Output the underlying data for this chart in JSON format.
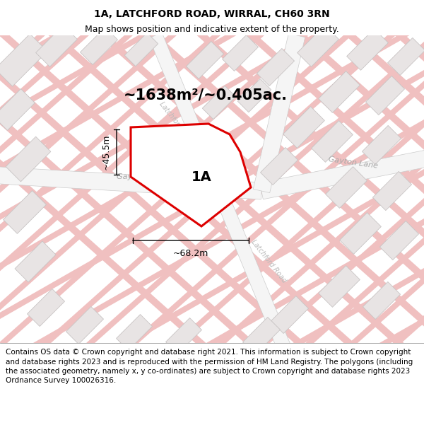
{
  "title": "1A, LATCHFORD ROAD, WIRRAL, CH60 3RN",
  "subtitle": "Map shows position and indicative extent of the property.",
  "area_label": "~1638m²/~0.405ac.",
  "plot_label": "1A",
  "dim_width": "~68.2m",
  "dim_height": "~45.5m",
  "footer": "Contains OS data © Crown copyright and database right 2021. This information is subject to Crown copyright and database rights 2023 and is reproduced with the permission of HM Land Registry. The polygons (including the associated geometry, namely x, y co-ordinates) are subject to Crown copyright and database rights 2023 Ordnance Survey 100026316.",
  "map_bg": "#ffffff",
  "road_color": "#f2b8b8",
  "road_border": "#e89898",
  "road_main_fill": "#f5f5f5",
  "road_main_border": "#cccccc",
  "building_fill": "#e8e4e4",
  "building_edge": "#c8c4c4",
  "plot_border_color": "#dd0000",
  "plot_fill_color": "#ffffff",
  "title_fontsize": 10,
  "subtitle_fontsize": 9,
  "footer_fontsize": 7.5,
  "area_fontsize": 15,
  "label_fontsize": 14,
  "dim_fontsize": 9,
  "road_label_color": "#aaaaaa",
  "road_label_size": 8
}
